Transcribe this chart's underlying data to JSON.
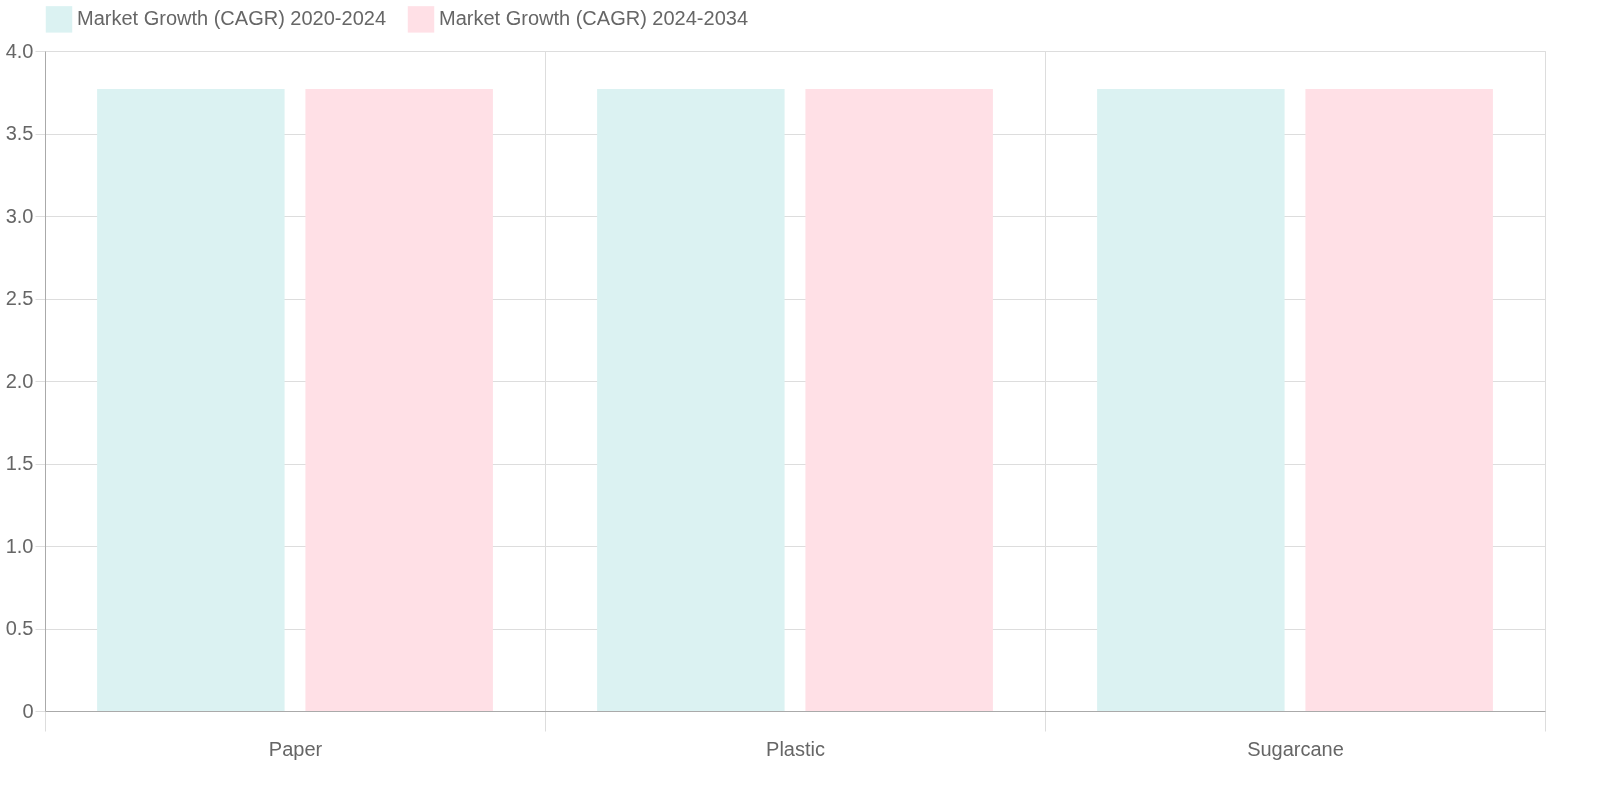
{
  "chart_data": {
    "type": "bar",
    "categories": [
      "Paper",
      "Plastic",
      "Sugarcane"
    ],
    "series": [
      {
        "name": "Market Growth (CAGR) 2020-2024",
        "color": "#dbf2f2",
        "values": [
          3.77,
          3.77,
          3.77
        ]
      },
      {
        "name": "Market Growth (CAGR) 2024-2034",
        "color": "#ffe0e6",
        "values": [
          3.77,
          3.77,
          3.77
        ]
      }
    ],
    "ylim": [
      0,
      4.0
    ],
    "yticks": [
      0,
      {
        "value": 0.5,
        "label": "0.5"
      },
      {
        "value": 1,
        "label": "1.0"
      },
      {
        "value": 1.5,
        "label": "1.5"
      },
      {
        "value": 2,
        "label": "2.0"
      },
      {
        "value": 2.5,
        "label": "2.5"
      },
      {
        "value": 3,
        "label": "3.0"
      },
      {
        "value": 3.5,
        "label": "3.5"
      },
      {
        "value": 4,
        "label": "4.0"
      }
    ],
    "grid": true,
    "legend": "top"
  }
}
